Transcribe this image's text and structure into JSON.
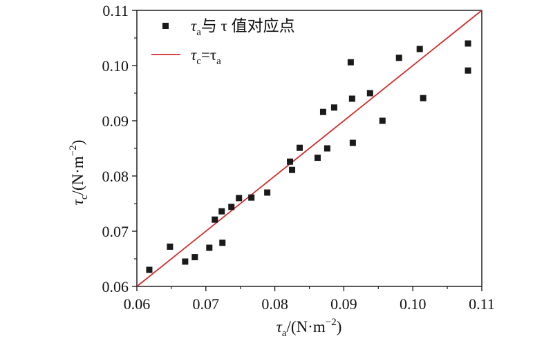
{
  "chart_data": {
    "type": "scatter",
    "title": "",
    "xlim": [
      0.06,
      0.11
    ],
    "ylim": [
      0.06,
      0.11
    ],
    "xticks": [
      "0.06",
      "0.07",
      "0.08",
      "0.09",
      "0.10",
      "0.11"
    ],
    "yticks": [
      "0.06",
      "0.07",
      "0.08",
      "0.09",
      "0.10",
      "0.11"
    ],
    "xlabel": {
      "symbol": "τ",
      "sub": "a",
      "unit": "/(N·m",
      "sup": "−2",
      "close": ")"
    },
    "ylabel": {
      "symbol": "τ",
      "sub": "c",
      "unit": "/(N·m",
      "sup": "−2",
      "close": ")"
    },
    "grid": false,
    "legend_position": "top-left",
    "series": [
      {
        "kind": "scatter",
        "marker": "square",
        "color": "#1a1a1a",
        "legend": {
          "symbol": "τ",
          "sub": "a",
          "rest": "与 τ 值对应点"
        },
        "points": [
          [
            0.0618,
            0.063
          ],
          [
            0.0648,
            0.0672
          ],
          [
            0.067,
            0.0645
          ],
          [
            0.0684,
            0.0653
          ],
          [
            0.0705,
            0.067
          ],
          [
            0.0713,
            0.0721
          ],
          [
            0.0723,
            0.0736
          ],
          [
            0.0724,
            0.0679
          ],
          [
            0.0737,
            0.0744
          ],
          [
            0.0748,
            0.076
          ],
          [
            0.0766,
            0.0761
          ],
          [
            0.0789,
            0.077
          ],
          [
            0.0822,
            0.0826
          ],
          [
            0.0825,
            0.0811
          ],
          [
            0.0836,
            0.0851
          ],
          [
            0.0862,
            0.0833
          ],
          [
            0.087,
            0.0916
          ],
          [
            0.0876,
            0.085
          ],
          [
            0.0886,
            0.0924
          ],
          [
            0.091,
            0.1006
          ],
          [
            0.0912,
            0.094
          ],
          [
            0.0913,
            0.086
          ],
          [
            0.0938,
            0.095
          ],
          [
            0.0956,
            0.09
          ],
          [
            0.098,
            0.1014
          ],
          [
            0.101,
            0.103
          ],
          [
            0.1015,
            0.0941
          ],
          [
            0.108,
            0.104
          ],
          [
            0.108,
            0.0991
          ]
        ]
      },
      {
        "kind": "line",
        "color": "#d42a2a",
        "legend": {
          "symbol": "τ",
          "sub": "c",
          "rest": "=τ",
          "sub2": "a"
        },
        "points": [
          [
            0.06,
            0.06
          ],
          [
            0.11,
            0.11
          ]
        ]
      }
    ]
  }
}
